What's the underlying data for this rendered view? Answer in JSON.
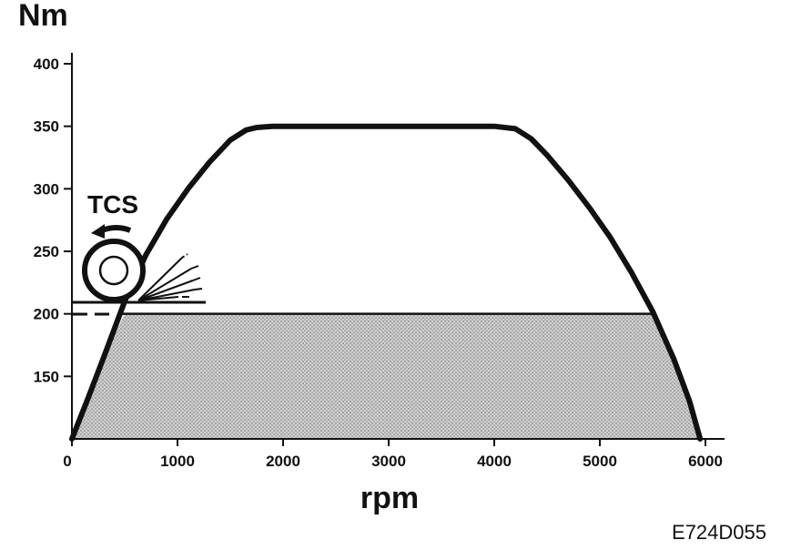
{
  "chart_data": {
    "type": "line",
    "ylabel": "Nm",
    "xlabel": "rpm",
    "figure_code": "E724D055",
    "tcs_label": "TCS",
    "xlim": [
      0,
      6000
    ],
    "ylim": [
      100,
      400
    ],
    "x_ticks": [
      0,
      1000,
      2000,
      3000,
      4000,
      5000,
      6000
    ],
    "y_ticks": [
      150,
      200,
      250,
      300,
      350,
      400
    ],
    "grid": false,
    "series": [
      {
        "x": [
          0,
          150,
          300,
          500,
          700,
          900,
          1100,
          1300,
          1500,
          1650,
          1750,
          1900,
          2500,
          3500,
          4000,
          4200,
          4350,
          4500,
          4700,
          4900,
          5100,
          5300,
          5500,
          5700,
          5850,
          5950
        ],
        "y": [
          100,
          132,
          165,
          210,
          247,
          276,
          300,
          321,
          339,
          347,
          349,
          350,
          350,
          350,
          350,
          348,
          340,
          327,
          307,
          285,
          261,
          233,
          202,
          164,
          130,
          100
        ]
      }
    ],
    "tcs_limit_nm": 200
  },
  "colors": {
    "line": "#111111",
    "shading": "#c4c4c4",
    "background": "#ffffff"
  }
}
